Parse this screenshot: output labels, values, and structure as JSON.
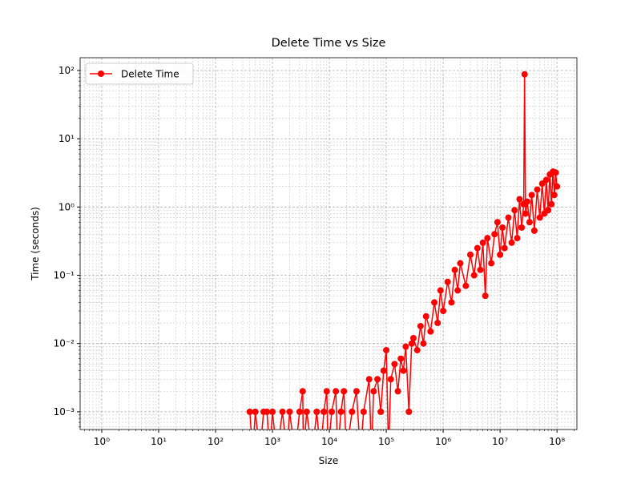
{
  "chart_data": {
    "type": "line",
    "title": "Delete Time vs Size",
    "xlabel": "Size",
    "ylabel": "Time (seconds)",
    "xscale": "log",
    "yscale": "log",
    "grid": true,
    "legend": "upper left",
    "xlim": [
      0.417,
      224000000.0
    ],
    "ylim": [
      0.00055,
      154
    ],
    "xticks": [
      {
        "value": 1,
        "label": "10⁰"
      },
      {
        "value": 10,
        "label": "10¹"
      },
      {
        "value": 100,
        "label": "10²"
      },
      {
        "value": 1000,
        "label": "10³"
      },
      {
        "value": 10000,
        "label": "10⁴"
      },
      {
        "value": 100000,
        "label": "10⁵"
      },
      {
        "value": 1000000,
        "label": "10⁶"
      },
      {
        "value": 10000000,
        "label": "10⁷"
      },
      {
        "value": 100000000,
        "label": "10⁸"
      }
    ],
    "yticks": [
      {
        "value": 0.001,
        "label": "10⁻³"
      },
      {
        "value": 0.01,
        "label": "10⁻²"
      },
      {
        "value": 0.1,
        "label": "10⁻¹"
      },
      {
        "value": 1,
        "label": "10⁰"
      },
      {
        "value": 10,
        "label": "10¹"
      },
      {
        "value": 100,
        "label": "10²"
      }
    ],
    "xminorticks": [
      0.5,
      0.6,
      0.7,
      0.8,
      0.9,
      2,
      3,
      4,
      5,
      6,
      7,
      8,
      9,
      20,
      30,
      40,
      50,
      60,
      70,
      80,
      90,
      200,
      300,
      400,
      500,
      600,
      700,
      800,
      900,
      2000,
      3000,
      4000,
      5000,
      6000,
      7000,
      8000,
      9000,
      20000,
      30000,
      40000,
      50000,
      60000,
      70000,
      80000,
      90000,
      200000,
      300000,
      400000,
      500000,
      600000,
      700000,
      800000,
      900000,
      2000000,
      3000000,
      4000000,
      5000000,
      6000000,
      7000000,
      8000000,
      9000000,
      20000000,
      30000000,
      40000000,
      50000000,
      60000000,
      70000000,
      80000000,
      90000000,
      200000000
    ],
    "yminorticks": [
      0.0006,
      0.0007,
      0.0008,
      0.0009,
      0.002,
      0.003,
      0.004,
      0.005,
      0.006,
      0.007,
      0.008,
      0.009,
      0.02,
      0.03,
      0.04,
      0.05,
      0.06,
      0.07,
      0.08,
      0.09,
      0.2,
      0.3,
      0.4,
      0.5,
      0.6,
      0.7,
      0.8,
      0.9,
      2,
      3,
      4,
      5,
      6,
      7,
      8,
      9,
      20,
      30,
      40,
      50,
      60,
      70,
      80,
      90
    ],
    "x": [
      400,
      450,
      500,
      600,
      700,
      800,
      900,
      1000,
      1200,
      1500,
      1800,
      2000,
      2500,
      3000,
      3400,
      3500,
      4000,
      5000,
      6000,
      7000,
      8000,
      9000,
      9500,
      11000,
      13000,
      14000,
      16000,
      18000,
      20000,
      25000,
      30000,
      35000,
      40000,
      50000,
      55000,
      60000,
      70000,
      80000,
      90000,
      100000,
      110000,
      120000,
      140000,
      160000,
      180000,
      200000,
      220000,
      250000,
      280000,
      300000,
      350000,
      400000,
      450000,
      500000,
      600000,
      700000,
      800000,
      900000,
      1000000,
      1200000,
      1400000,
      1600000,
      1800000,
      2000000,
      2500000,
      3000000,
      3500000,
      4000000,
      4500000,
      5000000,
      5500000,
      6000000,
      7000000,
      8000000,
      9000000,
      10000000,
      11000000,
      12000000,
      14000000,
      16000000,
      18000000,
      20000000,
      22000000,
      24000000,
      26000000,
      27000000,
      28000000,
      30000000,
      33000000,
      36000000,
      40000000,
      45000000,
      50000000,
      55000000,
      60000000,
      65000000,
      70000000,
      75000000,
      80000000,
      85000000,
      90000000,
      95000000,
      100000000
    ],
    "series": [
      {
        "name": "Delete Time",
        "color": "#ff0000",
        "values": [
          0.001,
          0,
          0.001,
          0,
          0.001,
          0.001,
          0,
          0.001,
          0,
          0.001,
          0,
          0.001,
          0,
          0.001,
          0.002,
          0,
          0.001,
          0,
          0.001,
          0,
          0.001,
          0.002,
          0,
          0.001,
          0.002,
          0,
          0.001,
          0.002,
          0,
          0.001,
          0.002,
          0,
          0.001,
          0.003,
          0,
          0.002,
          0.003,
          0.001,
          0.004,
          0.008,
          0,
          0.003,
          0.005,
          0.002,
          0.006,
          0.004,
          0.009,
          0.001,
          0.01,
          0.012,
          0.008,
          0.018,
          0.01,
          0.025,
          0.015,
          0.04,
          0.02,
          0.06,
          0.03,
          0.08,
          0.04,
          0.12,
          0.06,
          0.15,
          0.07,
          0.2,
          0.1,
          0.25,
          0.12,
          0.3,
          0.05,
          0.35,
          0.15,
          0.4,
          0.6,
          0.2,
          0.5,
          0.25,
          0.7,
          0.3,
          0.9,
          0.35,
          1.3,
          0.5,
          1.1,
          88,
          0.8,
          1.2,
          0.6,
          1.5,
          0.45,
          1.8,
          0.7,
          2.2,
          0.8,
          2.5,
          0.9,
          3.0,
          1.1,
          3.3,
          1.5,
          3.2,
          2.0
        ]
      }
    ]
  }
}
